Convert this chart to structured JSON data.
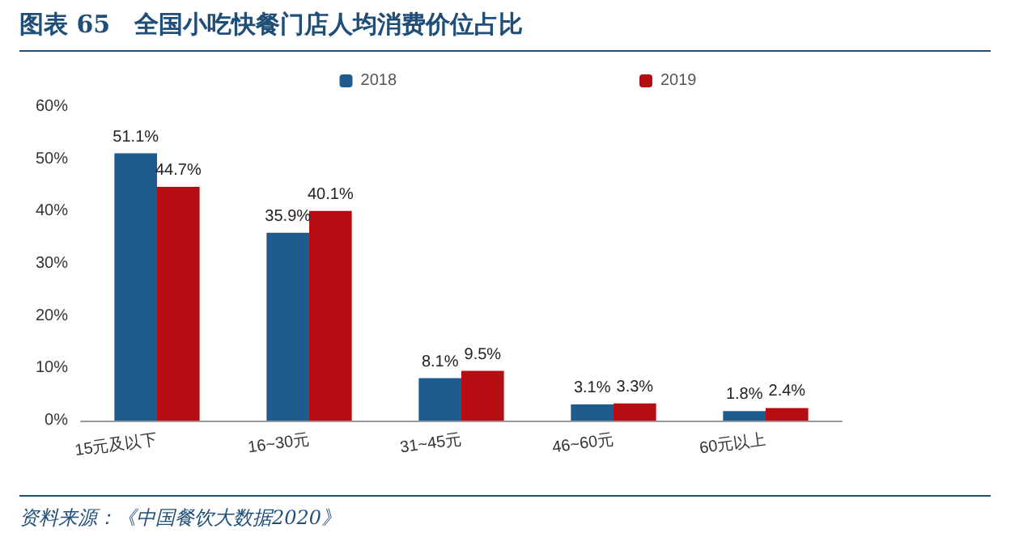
{
  "chart_data": {
    "type": "bar",
    "title": "图表 65　全国小吃快餐门店人均消费价位占比",
    "annotations": [
      "资料来源：《中国餐饮大数据2020》"
    ],
    "categories": [
      "15元及以下",
      "16~30元",
      "31~45元",
      "46~60元",
      "60元以上"
    ],
    "series": [
      {
        "name": "2018",
        "color": "#1f5b8c",
        "values": [
          51.1,
          35.9,
          8.1,
          3.1,
          1.8
        ],
        "value_labels": [
          "51.1%",
          "35.9%",
          "8.1%",
          "3.1%",
          "1.8%"
        ]
      },
      {
        "name": "2019",
        "color": "#b50d12",
        "values": [
          44.7,
          40.1,
          9.5,
          3.3,
          2.4
        ],
        "value_labels": [
          "44.7%",
          "40.1%",
          "9.5%",
          "3.3%",
          "2.4%"
        ]
      }
    ],
    "ylim": [
      0,
      60
    ],
    "yticks": [
      {
        "value": 0,
        "label": "0%"
      },
      {
        "value": 10,
        "label": "10%"
      },
      {
        "value": 20,
        "label": "20%"
      },
      {
        "value": 30,
        "label": "30%"
      },
      {
        "value": 40,
        "label": "40%"
      },
      {
        "value": 50,
        "label": "50%"
      },
      {
        "value": 60,
        "label": "60%"
      }
    ],
    "grid": false,
    "legend": "top"
  }
}
